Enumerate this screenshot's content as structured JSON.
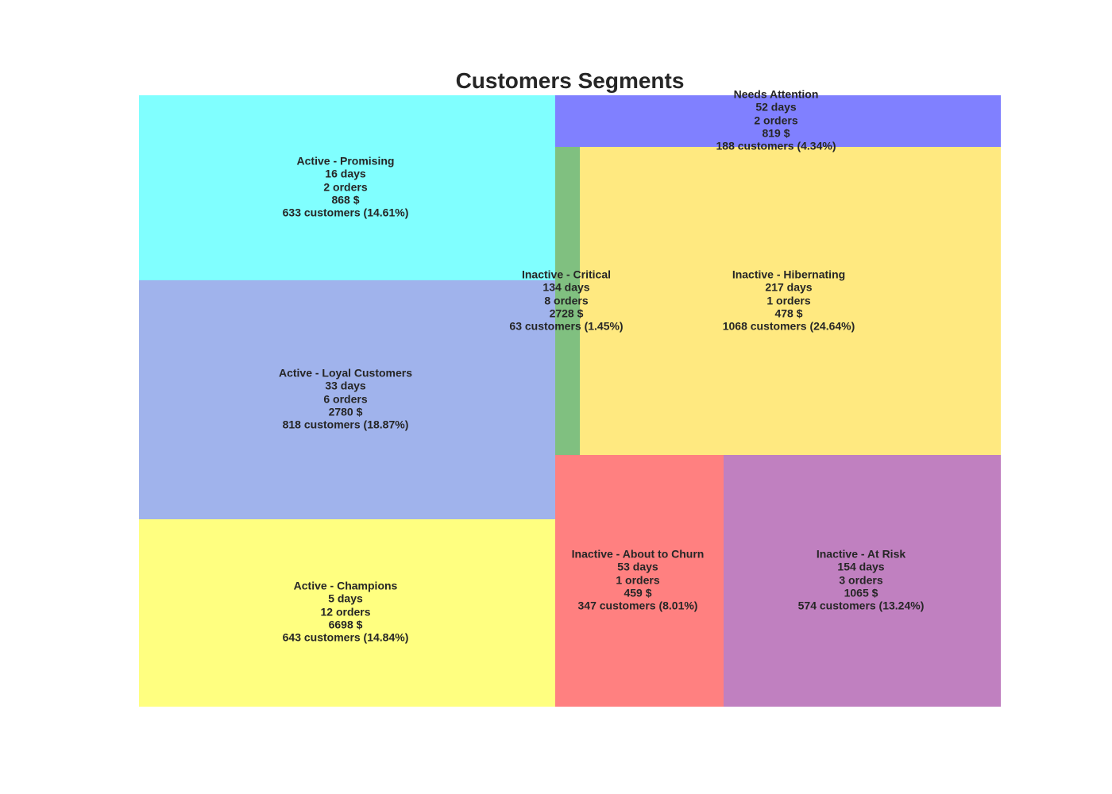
{
  "chart_data": {
    "type": "treemap",
    "title": "Customers Segments",
    "segments": [
      {
        "name": "Active - Promising",
        "recency": "16 days",
        "frequency": "2 orders",
        "monetary": "868 $",
        "customers_label": "633 customers (14.61%)",
        "customers": 633,
        "share_pct": 14.61,
        "color": "#80ffff"
      },
      {
        "name": "Active - Loyal Customers",
        "recency": "33 days",
        "frequency": "6 orders",
        "monetary": "2780 $",
        "customers_label": "818 customers (18.87%)",
        "customers": 818,
        "share_pct": 18.87,
        "color": "#a0b3ec"
      },
      {
        "name": "Active - Champions",
        "recency": "5 days",
        "frequency": "12 orders",
        "monetary": "6698 $",
        "customers_label": "643 customers (14.84%)",
        "customers": 643,
        "share_pct": 14.84,
        "color": "#ffff80"
      },
      {
        "name": "Needs Attention",
        "recency": "52 days",
        "frequency": "2 orders",
        "monetary": "819 $",
        "customers_label": "188 customers (4.34%)",
        "customers": 188,
        "share_pct": 4.34,
        "color": "#8080ff"
      },
      {
        "name": "Inactive - Critical",
        "recency": "134 days",
        "frequency": "8 orders",
        "monetary": "2728 $",
        "customers_label": "63 customers (1.45%)",
        "customers": 63,
        "share_pct": 1.45,
        "color": "#80c080"
      },
      {
        "name": "Inactive - Hibernating",
        "recency": "217 days",
        "frequency": "1 orders",
        "monetary": "478 $",
        "customers_label": "1068 customers (24.64%)",
        "customers": 1068,
        "share_pct": 24.64,
        "color": "#ffe980"
      },
      {
        "name": "Inactive - About to Churn",
        "recency": "53 days",
        "frequency": "1 orders",
        "monetary": "459 $",
        "customers_label": "347 customers (8.01%)",
        "customers": 347,
        "share_pct": 8.01,
        "color": "#ff8080"
      },
      {
        "name": "Inactive - At Risk",
        "recency": "154 days",
        "frequency": "3 orders",
        "monetary": "1065 $",
        "customers_label": "574 customers (13.24%)",
        "customers": 574,
        "share_pct": 13.24,
        "color": "#c080c0"
      }
    ]
  }
}
